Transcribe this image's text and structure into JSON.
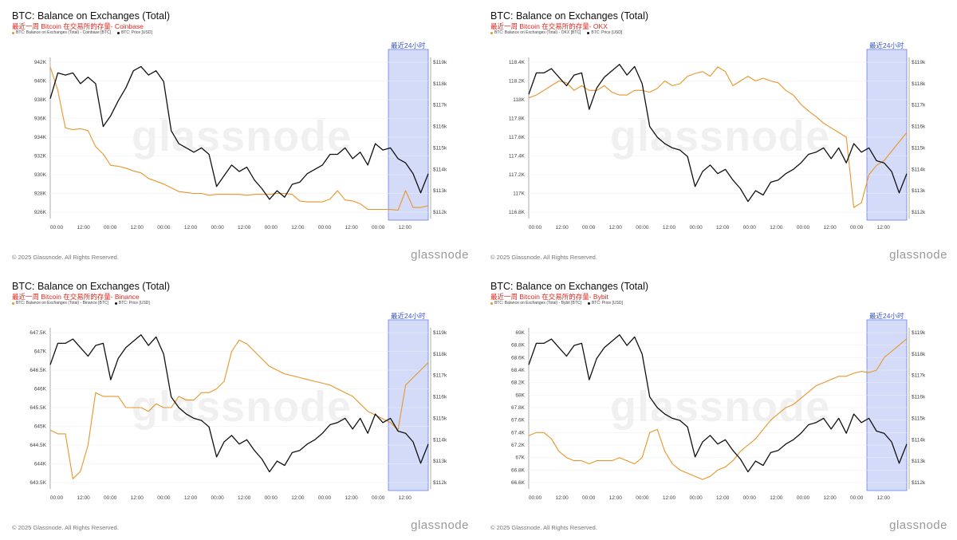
{
  "colors": {
    "balance": "#e8952a",
    "price": "#111111",
    "highlight": "#c9d2f7",
    "highlight_border": "#3f5bd9",
    "subtitle": "#e0281f"
  },
  "footer": {
    "copyright": "© 2025 Glassnode. All Rights Reserved.",
    "brand": "glassnode"
  },
  "watermark": "glassnode",
  "highlight_label": "最近24小时",
  "x_ticks": [
    "00:00",
    "12:00",
    "00:00",
    "12:00",
    "00:00",
    "12:00",
    "00:00",
    "12:00",
    "00:00",
    "12:00",
    "00:00",
    "12:00",
    "00:00",
    "12:00"
  ],
  "right_axis": {
    "ticks": [
      "$119k",
      "$118k",
      "$117k",
      "$116k",
      "$115k",
      "$114k",
      "$113k",
      "$112k"
    ]
  },
  "chart_data": [
    {
      "type": "line",
      "title": "BTC: Balance on Exchanges (Total)",
      "subtitle": "最近一周 Bitcoin 在交易所的存量- Coinbase",
      "legend": [
        "BTC: Balance on Exchanges (Total) - Coinbase [BTC]",
        "BTC: Price [USD]"
      ],
      "left_ticks": [
        "942K",
        "940K",
        "938K",
        "936K",
        "934K",
        "932K",
        "930K",
        "928K",
        "926K"
      ],
      "left_range": [
        926000,
        942000
      ],
      "right_range": [
        112000,
        119000
      ],
      "series": [
        {
          "values": [
            941500,
            939000,
            935000,
            934800,
            934900,
            934700,
            933000,
            932200,
            931000,
            930900,
            930700,
            930400,
            930200,
            929600,
            929300,
            929000,
            928600,
            928200,
            928100,
            928000,
            928000,
            927800,
            927900,
            927900,
            927900,
            927900,
            927800,
            927900,
            927900,
            927900,
            928000,
            928000,
            927900,
            927200,
            927100,
            927100,
            927100,
            927400,
            928300,
            927300,
            927200,
            926900,
            926300,
            926300,
            926300,
            926300,
            926200,
            928300,
            926500,
            926500,
            926700
          ]
        },
        {
          "values": [
            117300,
            118500,
            118400,
            118500,
            118000,
            118300,
            118000,
            116000,
            116500,
            117200,
            117800,
            118600,
            118800,
            118400,
            118600,
            118100,
            115800,
            115200,
            115000,
            114800,
            115000,
            114700,
            113200,
            113700,
            114200,
            113900,
            114100,
            113500,
            113100,
            112600,
            113000,
            112700,
            113300,
            113400,
            113800,
            114000,
            114200,
            114700,
            114700,
            115000,
            114500,
            114800,
            114200,
            115200,
            114900,
            115000,
            114500,
            114300,
            113800,
            112900,
            113800
          ]
        }
      ]
    },
    {
      "type": "line",
      "title": "BTC: Balance on Exchanges (Total)",
      "subtitle": "最近一周 Bitcoin 在交易所的存量- OKX",
      "legend": [
        "BTC: Balance on Exchanges (Total) - OKX [BTC]",
        "BTC: Price [USD]"
      ],
      "left_ticks": [
        "118.4K",
        "118.2K",
        "118K",
        "117.8K",
        "117.6K",
        "117.4K",
        "117.2K",
        "117K",
        "116.8K"
      ],
      "left_range": [
        116800,
        118400
      ],
      "right_range": [
        112000,
        119000
      ],
      "series": [
        {
          "values": [
            118020,
            118050,
            118100,
            118150,
            118200,
            118180,
            118100,
            118150,
            118100,
            118100,
            118150,
            118080,
            118050,
            118050,
            118100,
            118100,
            118080,
            118120,
            118200,
            118150,
            118170,
            118250,
            118280,
            118300,
            118250,
            118350,
            118300,
            118150,
            118200,
            118250,
            118200,
            118230,
            118200,
            118180,
            118100,
            118050,
            117950,
            117880,
            117820,
            117750,
            117700,
            117650,
            117600,
            116850,
            116900,
            117200,
            117300,
            117350,
            117450,
            117550,
            117650
          ]
        },
        {
          "values": [
            117500,
            118500,
            118500,
            118700,
            118300,
            117900,
            118400,
            118500,
            116800,
            117800,
            118300,
            118600,
            118900,
            118400,
            118800,
            118000,
            116000,
            115500,
            115200,
            115000,
            114900,
            114600,
            113200,
            113900,
            114200,
            113800,
            114000,
            113500,
            113100,
            112500,
            113000,
            112800,
            113400,
            113500,
            113800,
            114000,
            114300,
            114700,
            114800,
            115000,
            114500,
            115000,
            114300,
            115200,
            114800,
            115000,
            114400,
            114300,
            113900,
            112900,
            113800
          ]
        }
      ]
    },
    {
      "type": "line",
      "title": "BTC: Balance on Exchanges (Total)",
      "subtitle": "最近一周 Bitcoin 在交易所的存量- Binance",
      "legend": [
        "BTC: Balance on Exchanges (Total) - Binance [BTC]",
        "BTC: Price [USD]"
      ],
      "left_ticks": [
        "647.5K",
        "647K",
        "646.5K",
        "646K",
        "645.5K",
        "645K",
        "644.5K",
        "644K",
        "643.5K"
      ],
      "left_range": [
        643500,
        647500
      ],
      "right_range": [
        112000,
        119000
      ],
      "series": [
        {
          "values": [
            644900,
            644800,
            644800,
            643600,
            643800,
            644500,
            645900,
            645800,
            645800,
            645800,
            645500,
            645500,
            645500,
            645400,
            645600,
            645500,
            645500,
            645800,
            645700,
            645700,
            645900,
            645900,
            646000,
            646200,
            647000,
            647300,
            647200,
            647000,
            646800,
            646600,
            646500,
            646400,
            646350,
            646300,
            646250,
            646200,
            646150,
            646100,
            646000,
            645900,
            645800,
            645600,
            645400,
            645300,
            645200,
            645100,
            644900,
            646100,
            646300,
            646500,
            646700
          ]
        },
        {
          "values": [
            117500,
            118500,
            118500,
            118700,
            118300,
            117900,
            118400,
            118500,
            116800,
            117800,
            118300,
            118600,
            118900,
            118400,
            118800,
            118000,
            116000,
            115500,
            115200,
            115000,
            114900,
            114600,
            113200,
            113900,
            114200,
            113800,
            114000,
            113500,
            113100,
            112500,
            113000,
            112800,
            113400,
            113500,
            113800,
            114000,
            114300,
            114700,
            114800,
            115000,
            114500,
            115000,
            114300,
            115200,
            114800,
            115000,
            114400,
            114300,
            113900,
            112900,
            113800
          ]
        }
      ]
    },
    {
      "type": "line",
      "title": "BTC: Balance on Exchanges (Total)",
      "subtitle": "最近一周 Bitcoin 在交易所的存量- Bybit",
      "legend": [
        "BTC: Balance on Exchanges (Total) - Bybit [BTC]",
        "BTC: Price [USD]"
      ],
      "left_ticks": [
        "69K",
        "68.8K",
        "68.6K",
        "68.4K",
        "68.2K",
        "68K",
        "67.8K",
        "67.6K",
        "67.4K",
        "67.2K",
        "67K",
        "66.8K",
        "66.6K"
      ],
      "left_range": [
        66600,
        69000
      ],
      "right_range": [
        112000,
        119000
      ],
      "series": [
        {
          "values": [
            67350,
            67400,
            67400,
            67300,
            67100,
            67000,
            66950,
            66950,
            66900,
            66950,
            66950,
            66950,
            67000,
            66950,
            66900,
            67000,
            67400,
            67450,
            67100,
            66900,
            66800,
            66750,
            66700,
            66650,
            66700,
            66800,
            66850,
            66950,
            67100,
            67200,
            67300,
            67450,
            67600,
            67700,
            67800,
            67850,
            67950,
            68050,
            68150,
            68200,
            68250,
            68300,
            68300,
            68350,
            68380,
            68360,
            68400,
            68600,
            68700,
            68800,
            68900
          ]
        },
        {
          "values": [
            117500,
            118500,
            118500,
            118700,
            118300,
            117900,
            118400,
            118500,
            116800,
            117800,
            118300,
            118600,
            118900,
            118400,
            118800,
            118000,
            116000,
            115500,
            115200,
            115000,
            114900,
            114600,
            113200,
            113900,
            114200,
            113800,
            114000,
            113500,
            113100,
            112500,
            113000,
            112800,
            113400,
            113500,
            113800,
            114000,
            114300,
            114700,
            114800,
            115000,
            114500,
            115000,
            114300,
            115200,
            114800,
            115000,
            114400,
            114300,
            113900,
            112900,
            113800
          ]
        }
      ]
    }
  ]
}
